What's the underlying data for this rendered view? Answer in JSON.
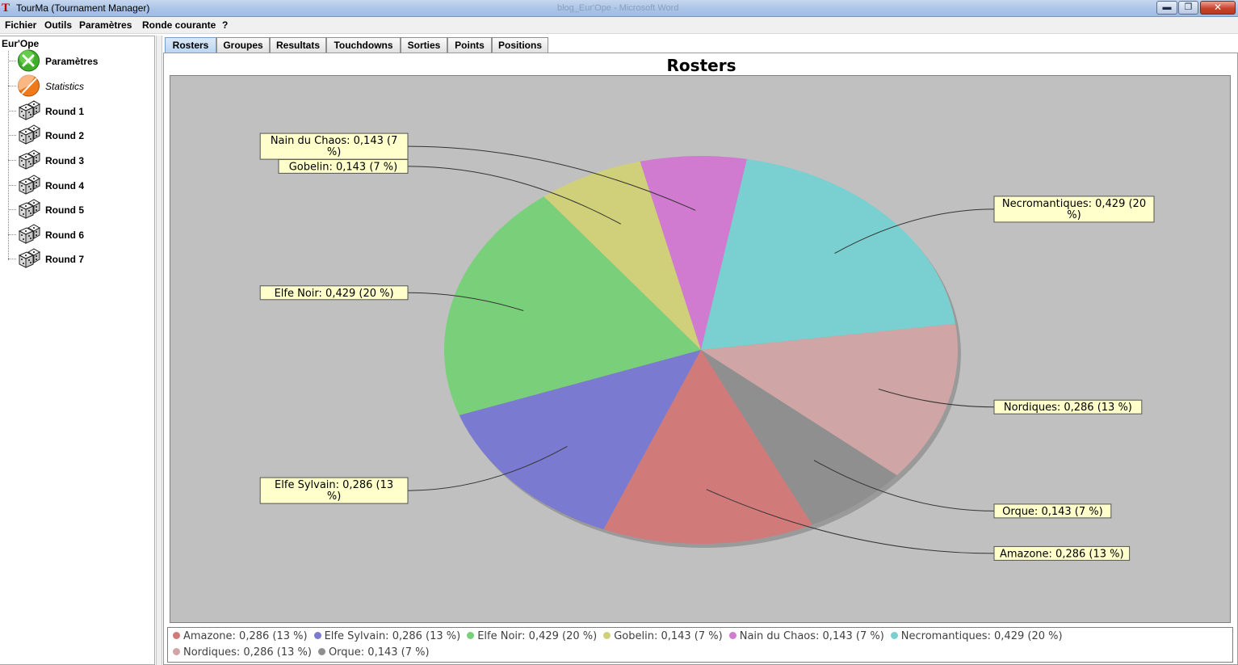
{
  "window": {
    "title": "TourMa (Tournament Manager)",
    "app_icon": "T",
    "ghost_title": "blog_Eur'Ope - Microsoft Word",
    "minimize_glyph": "▬",
    "maximize_glyph": "❐",
    "close_glyph": "✕"
  },
  "menu": {
    "items": [
      "Fichier",
      "Outils",
      "Paramètres",
      "Ronde courante",
      "?"
    ]
  },
  "tree": {
    "root": "Eur'Ope",
    "nodes": [
      {
        "label": "Paramètres",
        "icon": "tools-icon",
        "italic": false
      },
      {
        "label": "Statistics",
        "icon": "statistics-icon",
        "italic": true
      },
      {
        "label": "Round 1",
        "icon": "dice-icon",
        "italic": false
      },
      {
        "label": "Round 2",
        "icon": "dice-icon",
        "italic": false
      },
      {
        "label": "Round 3",
        "icon": "dice-icon",
        "italic": false
      },
      {
        "label": "Round 4",
        "icon": "dice-icon",
        "italic": false
      },
      {
        "label": "Round 5",
        "icon": "dice-icon",
        "italic": false
      },
      {
        "label": "Round 6",
        "icon": "dice-icon",
        "italic": false
      },
      {
        "label": "Round 7",
        "icon": "dice-icon",
        "italic": false
      }
    ]
  },
  "tabs": {
    "active": 0,
    "items": [
      "Rosters",
      "Groupes",
      "Resultats",
      "Touchdowns",
      "Sorties",
      "Points",
      "Positions"
    ]
  },
  "chart_data": {
    "type": "pie",
    "title": "Rosters",
    "slices": [
      {
        "name": "Amazone",
        "value": 0.286,
        "percent": "13 %",
        "color": "#d07a7a",
        "label": "Amazone: 0,286 (13 %)",
        "legend": "Amazone: 0,286 (13 %)"
      },
      {
        "name": "Elfe Sylvain",
        "value": 0.286,
        "percent": "13 %",
        "color": "#7a7ad0",
        "label": "Elfe Sylvain: 0,286 (13 %)",
        "legend": "Elfe Sylvain: 0,286 (13 %)"
      },
      {
        "name": "Elfe Noir",
        "value": 0.429,
        "percent": "20 %",
        "color": "#7ad07a",
        "label": "Elfe Noir: 0,429 (20 %)",
        "legend": "Elfe Noir: 0,429 (20 %)"
      },
      {
        "name": "Gobelin",
        "value": 0.143,
        "percent": "7 %",
        "color": "#d0d07a",
        "label": "Gobelin: 0,143 (7 %)",
        "legend": "Gobelin: 0,143 (7 %)"
      },
      {
        "name": "Nain du Chaos",
        "value": 0.143,
        "percent": "7 %",
        "color": "#d07ad0",
        "label": "Nain du Chaos: 0,143 (7 %)",
        "legend": "Nain du Chaos: 0,143 (7 %)"
      },
      {
        "name": "Necromantiques",
        "value": 0.429,
        "percent": "20 %",
        "color": "#7ad0d0",
        "label": "Necromantiques: 0,429 (20 %)",
        "legend": "Necromantiques: 0,429 (20 %)"
      },
      {
        "name": "Nordiques",
        "value": 0.286,
        "percent": "13 %",
        "color": "#d0a5a5",
        "label": "Nordiques: 0,286 (13 %)",
        "legend": "Nordiques: 0,286 (13 %)"
      },
      {
        "name": "Orque",
        "value": 0.143,
        "percent": "7 %",
        "color": "#8f8f8f",
        "label": "Orque: 0,143 (7 %)",
        "legend": "Orque: 0,143 (7 %)"
      }
    ],
    "legend_placement": "bottom",
    "plot_background": "#c0c0c0",
    "label_background": "#ffffcc"
  }
}
